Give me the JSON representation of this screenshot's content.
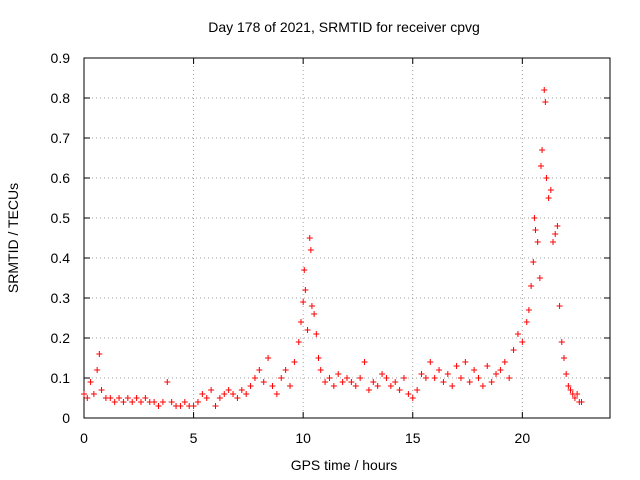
{
  "chart_data": {
    "type": "scatter",
    "title": "Day 178 of 2021, SRMTID for receiver cpvg",
    "xlabel": "GPS time / hours",
    "ylabel": "SRMTID / TECUs",
    "xlim": [
      0,
      24
    ],
    "ylim": [
      0,
      0.9
    ],
    "xticks": [
      0,
      5,
      10,
      15,
      20
    ],
    "xtick_labels": [
      "0",
      "5",
      "10",
      "15",
      "20"
    ],
    "yticks": [
      0,
      0.1,
      0.2,
      0.3,
      0.4,
      0.5,
      0.6,
      0.7,
      0.8,
      0.9
    ],
    "ytick_labels": [
      "0",
      "0.1",
      "0.2",
      "0.3",
      "0.4",
      "0.5",
      "0.6",
      "0.7",
      "0.8",
      "0.9"
    ],
    "grid": true,
    "marker": "+",
    "series": [
      {
        "name": "cpvg",
        "color": "#ff0000",
        "points": [
          [
            0.0,
            0.06
          ],
          [
            0.15,
            0.05
          ],
          [
            0.3,
            0.09
          ],
          [
            0.45,
            0.06
          ],
          [
            0.6,
            0.12
          ],
          [
            0.7,
            0.16
          ],
          [
            0.8,
            0.07
          ],
          [
            1.0,
            0.05
          ],
          [
            1.2,
            0.05
          ],
          [
            1.4,
            0.04
          ],
          [
            1.6,
            0.05
          ],
          [
            1.8,
            0.04
          ],
          [
            2.0,
            0.05
          ],
          [
            2.2,
            0.04
          ],
          [
            2.4,
            0.05
          ],
          [
            2.6,
            0.04
          ],
          [
            2.8,
            0.05
          ],
          [
            3.0,
            0.04
          ],
          [
            3.2,
            0.04
          ],
          [
            3.4,
            0.03
          ],
          [
            3.6,
            0.04
          ],
          [
            3.8,
            0.09
          ],
          [
            4.0,
            0.04
          ],
          [
            4.2,
            0.03
          ],
          [
            4.4,
            0.03
          ],
          [
            4.6,
            0.04
          ],
          [
            4.8,
            0.03
          ],
          [
            5.0,
            0.03
          ],
          [
            5.2,
            0.04
          ],
          [
            5.4,
            0.06
          ],
          [
            5.6,
            0.05
          ],
          [
            5.8,
            0.07
          ],
          [
            6.0,
            0.03
          ],
          [
            6.2,
            0.05
          ],
          [
            6.4,
            0.06
          ],
          [
            6.6,
            0.07
          ],
          [
            6.8,
            0.06
          ],
          [
            7.0,
            0.05
          ],
          [
            7.2,
            0.07
          ],
          [
            7.4,
            0.06
          ],
          [
            7.6,
            0.08
          ],
          [
            7.8,
            0.1
          ],
          [
            8.0,
            0.12
          ],
          [
            8.2,
            0.09
          ],
          [
            8.4,
            0.15
          ],
          [
            8.6,
            0.08
          ],
          [
            8.8,
            0.06
          ],
          [
            9.0,
            0.1
          ],
          [
            9.2,
            0.12
          ],
          [
            9.4,
            0.08
          ],
          [
            9.6,
            0.14
          ],
          [
            9.8,
            0.19
          ],
          [
            9.9,
            0.24
          ],
          [
            10.0,
            0.29
          ],
          [
            10.05,
            0.37
          ],
          [
            10.1,
            0.32
          ],
          [
            10.2,
            0.22
          ],
          [
            10.3,
            0.45
          ],
          [
            10.35,
            0.42
          ],
          [
            10.4,
            0.28
          ],
          [
            10.5,
            0.26
          ],
          [
            10.6,
            0.21
          ],
          [
            10.7,
            0.15
          ],
          [
            10.8,
            0.12
          ],
          [
            11.0,
            0.09
          ],
          [
            11.2,
            0.1
          ],
          [
            11.4,
            0.08
          ],
          [
            11.6,
            0.11
          ],
          [
            11.8,
            0.09
          ],
          [
            12.0,
            0.1
          ],
          [
            12.2,
            0.09
          ],
          [
            12.4,
            0.08
          ],
          [
            12.6,
            0.1
          ],
          [
            12.8,
            0.14
          ],
          [
            13.0,
            0.07
          ],
          [
            13.2,
            0.09
          ],
          [
            13.4,
            0.08
          ],
          [
            13.6,
            0.11
          ],
          [
            13.8,
            0.1
          ],
          [
            14.0,
            0.08
          ],
          [
            14.2,
            0.09
          ],
          [
            14.4,
            0.07
          ],
          [
            14.6,
            0.1
          ],
          [
            14.8,
            0.06
          ],
          [
            15.0,
            0.05
          ],
          [
            15.2,
            0.07
          ],
          [
            15.4,
            0.11
          ],
          [
            15.6,
            0.1
          ],
          [
            15.8,
            0.14
          ],
          [
            16.0,
            0.1
          ],
          [
            16.2,
            0.12
          ],
          [
            16.4,
            0.09
          ],
          [
            16.6,
            0.11
          ],
          [
            16.8,
            0.08
          ],
          [
            17.0,
            0.13
          ],
          [
            17.2,
            0.1
          ],
          [
            17.4,
            0.14
          ],
          [
            17.6,
            0.09
          ],
          [
            17.8,
            0.12
          ],
          [
            18.0,
            0.1
          ],
          [
            18.2,
            0.08
          ],
          [
            18.4,
            0.13
          ],
          [
            18.6,
            0.09
          ],
          [
            18.8,
            0.11
          ],
          [
            19.0,
            0.12
          ],
          [
            19.2,
            0.14
          ],
          [
            19.4,
            0.1
          ],
          [
            19.6,
            0.17
          ],
          [
            19.8,
            0.21
          ],
          [
            20.0,
            0.19
          ],
          [
            20.2,
            0.24
          ],
          [
            20.3,
            0.27
          ],
          [
            20.4,
            0.33
          ],
          [
            20.5,
            0.39
          ],
          [
            20.55,
            0.5
          ],
          [
            20.6,
            0.47
          ],
          [
            20.7,
            0.44
          ],
          [
            20.8,
            0.35
          ],
          [
            20.85,
            0.63
          ],
          [
            20.9,
            0.67
          ],
          [
            21.0,
            0.82
          ],
          [
            21.05,
            0.79
          ],
          [
            21.1,
            0.6
          ],
          [
            21.2,
            0.55
          ],
          [
            21.3,
            0.57
          ],
          [
            21.4,
            0.44
          ],
          [
            21.5,
            0.46
          ],
          [
            21.6,
            0.48
          ],
          [
            21.7,
            0.28
          ],
          [
            21.8,
            0.19
          ],
          [
            21.9,
            0.15
          ],
          [
            22.0,
            0.11
          ],
          [
            22.1,
            0.08
          ],
          [
            22.2,
            0.07
          ],
          [
            22.3,
            0.06
          ],
          [
            22.4,
            0.05
          ],
          [
            22.5,
            0.06
          ],
          [
            22.6,
            0.04
          ],
          [
            22.7,
            0.04
          ]
        ]
      }
    ]
  }
}
